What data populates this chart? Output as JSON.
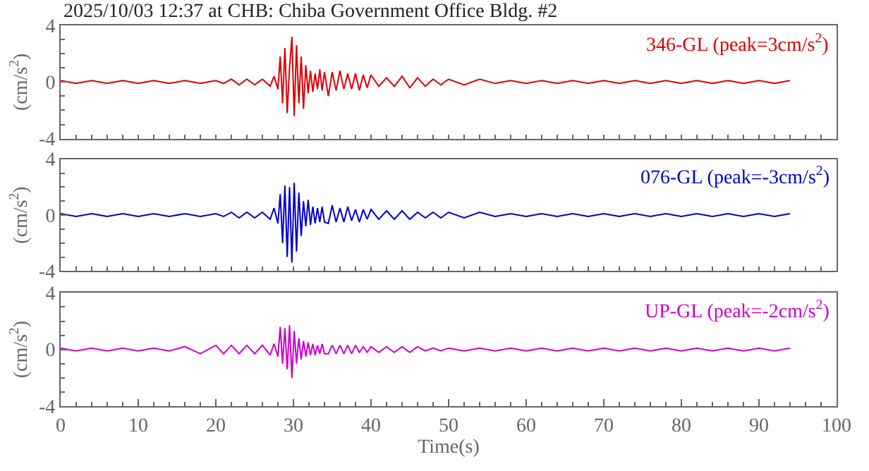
{
  "chart_data": [
    {
      "type": "line",
      "title": "2025/10/03 12:37 at CHB: Chiba Government Office Bldg. #2",
      "ylabel": "(cm/s$^{2}$)",
      "annotations": [
        "346-GL (peak=3cm/s$^{2}$)"
      ],
      "xlim": [
        0,
        100
      ],
      "ylim": [
        -4,
        4
      ],
      "yticks": [
        -4,
        0,
        4
      ],
      "tick_labels": "y",
      "x": [
        0,
        2,
        4,
        6,
        8,
        10,
        12,
        14,
        16,
        18,
        20,
        21,
        22,
        23,
        24,
        25,
        26,
        27,
        27.5,
        28,
        28.3,
        28.6,
        28.9,
        29.2,
        29.5,
        29.8,
        30.1,
        30.4,
        30.7,
        31,
        31.3,
        31.6,
        31.9,
        32.2,
        32.5,
        32.8,
        33.1,
        33.4,
        33.7,
        34,
        34.5,
        35,
        35.5,
        36,
        36.5,
        37,
        37.5,
        38,
        38.5,
        39,
        39.5,
        40,
        41,
        42,
        43,
        44,
        45,
        46,
        47,
        48,
        49,
        50,
        52,
        54,
        56,
        58,
        60,
        62,
        64,
        66,
        68,
        70,
        72,
        74,
        76,
        78,
        80,
        82,
        84,
        86,
        88,
        90,
        92,
        94
      ],
      "series": [
        {
          "color": "#dd0000",
          "values": [
            0.1,
            -0.1,
            0.1,
            -0.1,
            0.1,
            -0.1,
            0.1,
            -0.1,
            0.1,
            -0.1,
            0.1,
            -0.1,
            0.2,
            -0.2,
            0.2,
            -0.2,
            0.2,
            -0.3,
            0.4,
            -0.5,
            1.8,
            -1.5,
            2.4,
            -2.2,
            1.0,
            3.2,
            -2.4,
            2.6,
            -1.5,
            1.8,
            -1.9,
            1.2,
            -0.8,
            0.8,
            -0.7,
            0.6,
            -0.5,
            0.9,
            -0.6,
            0.7,
            -1.0,
            0.7,
            -0.6,
            0.8,
            -0.5,
            0.6,
            -0.5,
            0.6,
            -0.6,
            0.5,
            -0.4,
            0.5,
            -0.3,
            0.3,
            -0.3,
            0.4,
            -0.4,
            0.3,
            -0.3,
            0.2,
            -0.2,
            0.2,
            -0.2,
            0.2,
            -0.1,
            0.1,
            -0.1,
            0.1,
            -0.1,
            0.1,
            -0.1,
            0.1,
            -0.1,
            0.1,
            -0.1,
            0.1,
            -0.1,
            0.1,
            -0.1,
            0.1,
            -0.1,
            0.1,
            -0.1,
            0.1
          ]
        }
      ]
    },
    {
      "type": "line",
      "ylabel": "(cm/s$^{2}$)",
      "annotations": [
        "076-GL (peak=-3cm/s$^{2}$)"
      ],
      "xlim": [
        0,
        100
      ],
      "ylim": [
        -4,
        4
      ],
      "yticks": [
        -4,
        0,
        4
      ],
      "tick_labels": "y",
      "x": [
        0,
        2,
        4,
        6,
        8,
        10,
        12,
        14,
        16,
        18,
        20,
        21,
        22,
        23,
        24,
        25,
        26,
        27,
        27.5,
        28,
        28.3,
        28.6,
        28.9,
        29.2,
        29.5,
        29.8,
        30.1,
        30.4,
        30.7,
        31,
        31.3,
        31.6,
        31.9,
        32.2,
        32.5,
        32.8,
        33.1,
        33.4,
        33.7,
        34,
        34.5,
        35,
        35.5,
        36,
        36.5,
        37,
        37.5,
        38,
        38.5,
        39,
        39.5,
        40,
        41,
        42,
        43,
        44,
        45,
        46,
        47,
        48,
        49,
        50,
        52,
        54,
        56,
        58,
        60,
        62,
        64,
        66,
        68,
        70,
        72,
        74,
        76,
        78,
        80,
        82,
        84,
        86,
        88,
        90,
        92,
        94
      ],
      "series": [
        {
          "color": "#0000cc",
          "values": [
            0.1,
            -0.1,
            0.1,
            -0.1,
            0.1,
            -0.1,
            0.1,
            -0.1,
            0.1,
            -0.1,
            0.1,
            -0.1,
            0.2,
            -0.2,
            0.2,
            -0.2,
            0.2,
            -0.3,
            0.5,
            -0.6,
            1.5,
            -2.0,
            2.1,
            -3.0,
            2.0,
            -3.4,
            2.3,
            -2.6,
            1.6,
            -1.5,
            1.0,
            -0.8,
            1.1,
            -0.7,
            0.6,
            -0.6,
            0.5,
            -0.5,
            0.6,
            -0.5,
            -0.6,
            0.7,
            -0.5,
            0.5,
            -0.5,
            0.6,
            -0.4,
            0.4,
            -0.5,
            0.4,
            -0.3,
            0.4,
            -0.3,
            0.3,
            -0.3,
            0.3,
            -0.3,
            0.2,
            -0.2,
            0.2,
            -0.2,
            0.2,
            -0.2,
            0.2,
            -0.1,
            0.1,
            -0.1,
            0.1,
            -0.1,
            0.1,
            -0.1,
            0.1,
            -0.1,
            0.1,
            -0.1,
            0.1,
            -0.1,
            0.1,
            -0.1,
            0.1,
            -0.1,
            0.1,
            -0.1,
            0.1
          ]
        }
      ]
    },
    {
      "type": "line",
      "ylabel": "(cm/s$^{2}$)",
      "xlabel": "Time(s)",
      "annotations": [
        "UP-GL (peak=-2cm/s$^{2}$)"
      ],
      "xlim": [
        0,
        100
      ],
      "xticks": [
        0,
        10,
        20,
        30,
        40,
        50,
        60,
        70,
        80,
        90,
        100
      ],
      "ylim": [
        -4,
        4
      ],
      "yticks": [
        -4,
        0,
        4
      ],
      "x": [
        0,
        2,
        4,
        6,
        8,
        10,
        12,
        14,
        16,
        18,
        20,
        21,
        22,
        23,
        24,
        25,
        26,
        27,
        27.5,
        28,
        28.3,
        28.6,
        28.9,
        29.2,
        29.5,
        29.8,
        30.1,
        30.4,
        30.7,
        31,
        31.3,
        31.6,
        31.9,
        32.2,
        32.5,
        32.8,
        33.1,
        33.4,
        33.7,
        34,
        34.5,
        35,
        35.5,
        36,
        36.5,
        37,
        37.5,
        38,
        38.5,
        39,
        39.5,
        40,
        41,
        42,
        43,
        44,
        45,
        46,
        47,
        48,
        49,
        50,
        52,
        54,
        56,
        58,
        60,
        62,
        64,
        66,
        68,
        70,
        72,
        74,
        76,
        78,
        80,
        82,
        84,
        86,
        88,
        90,
        92,
        94
      ],
      "series": [
        {
          "color": "#cc00cc",
          "values": [
            0.1,
            -0.1,
            0.1,
            -0.1,
            0.1,
            -0.1,
            0.1,
            -0.1,
            0.2,
            -0.3,
            0.3,
            -0.3,
            0.3,
            -0.3,
            0.3,
            -0.3,
            0.3,
            -0.4,
            0.4,
            -0.5,
            1.6,
            -1.0,
            1.5,
            -1.4,
            1.7,
            -2.0,
            1.3,
            -1.0,
            0.8,
            -0.7,
            0.6,
            -0.5,
            0.5,
            -0.4,
            0.4,
            -0.4,
            0.3,
            -0.3,
            0.4,
            -0.3,
            -0.3,
            0.3,
            -0.3,
            0.3,
            -0.3,
            0.3,
            -0.3,
            0.3,
            -0.2,
            0.2,
            -0.2,
            0.2,
            -0.2,
            0.2,
            -0.2,
            0.2,
            -0.2,
            0.2,
            -0.1,
            0.1,
            -0.1,
            0.1,
            -0.1,
            0.1,
            -0.1,
            0.1,
            -0.1,
            0.1,
            -0.1,
            0.1,
            -0.1,
            0.1,
            -0.1,
            0.1,
            -0.1,
            0.1,
            -0.1,
            0.1,
            -0.1,
            0.1,
            -0.1,
            0.1,
            -0.1,
            0.1
          ]
        }
      ]
    }
  ]
}
